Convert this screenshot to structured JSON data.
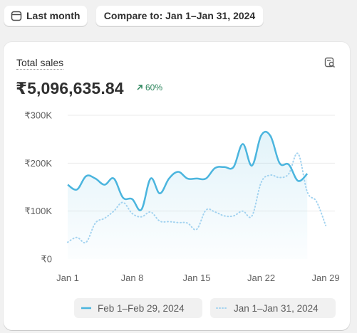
{
  "toolbar": {
    "period_label": "Last month",
    "compare_label": "Compare to: Jan 1–Jan 31, 2024"
  },
  "metric": {
    "title": "Total sales",
    "value": "₹5,096,635.84",
    "change": "60%",
    "change_direction": "up"
  },
  "colors": {
    "current": "#4bb5de",
    "previous": "#a3d3f0",
    "positive": "#29845a"
  },
  "chart_data": {
    "type": "line",
    "y_tick_labels": [
      "₹300K",
      "₹200K",
      "₹100K",
      "₹0"
    ],
    "x_tick_labels": [
      "Jan 1",
      "Jan 8",
      "Jan 15",
      "Jan 22",
      "Jan 29"
    ],
    "x_tick_days": [
      1,
      8,
      15,
      22,
      29
    ],
    "ylim": [
      0,
      300000
    ],
    "xlim": [
      1,
      30
    ],
    "series": [
      {
        "name": "Feb 1–Feb 29, 2024",
        "style": "solid",
        "values": [
          155000,
          145000,
          173000,
          168000,
          155000,
          168000,
          128000,
          125000,
          103000,
          168000,
          137000,
          168000,
          182000,
          168000,
          168000,
          168000,
          190000,
          192000,
          192000,
          240000,
          195000,
          258000,
          257000,
          200000,
          197000,
          163000,
          178000
        ]
      },
      {
        "name": "Jan 1–Jan 31, 2024",
        "style": "dotted",
        "values": [
          35000,
          45000,
          35000,
          75000,
          85000,
          100000,
          118000,
          95000,
          88000,
          98000,
          79000,
          78000,
          76000,
          75000,
          62000,
          102000,
          98000,
          90000,
          90000,
          100000,
          90000,
          160000,
          175000,
          170000,
          178000,
          220000,
          140000,
          120000,
          70000
        ]
      }
    ]
  },
  "legend": [
    {
      "label": "Feb 1–Feb 29, 2024"
    },
    {
      "label": "Jan 1–Jan 31, 2024"
    }
  ]
}
